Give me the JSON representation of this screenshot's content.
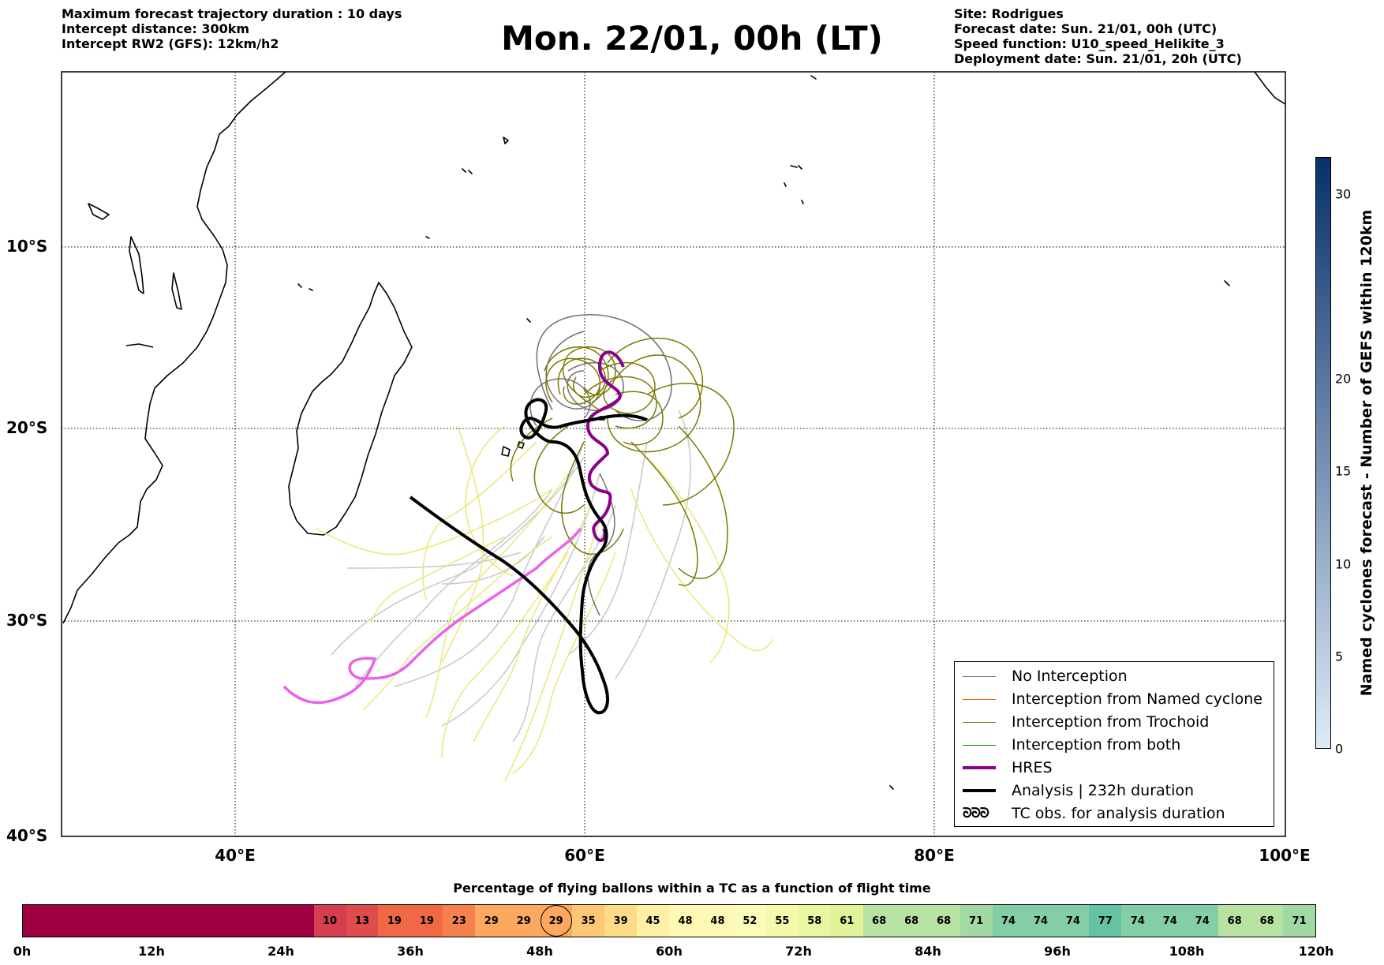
{
  "header_left": {
    "line1": "Maximum forecast trajectory duration : 10 days",
    "line2": "Intercept distance: 300km",
    "line3": "Intercept RW2 (GFS):  12km/h2"
  },
  "header_right": {
    "line1": "Site: Rodrigues",
    "line2": "Forecast date: Sun. 21/01, 00h (UTC)",
    "line3": "Speed function: U10_speed_Helikite_3",
    "line4": "Deployment date: Sun. 21/01, 20h (UTC)"
  },
  "title": "Mon. 22/01, 00h (LT)",
  "map": {
    "lat_labels": [
      "10°S",
      "20°S",
      "30°S",
      "40°S"
    ],
    "lon_labels": [
      "40°E",
      "60°E",
      "80°E",
      "100°E"
    ],
    "lon_range": [
      30,
      100
    ],
    "lat_range": [
      -40,
      1
    ]
  },
  "legend": {
    "items": [
      {
        "label": "No Interception",
        "color": "#707070"
      },
      {
        "label": "Interception from Named cyclone",
        "color": "#ff5a00"
      },
      {
        "label": "Interception from Trochoid",
        "color": "#7a7a00"
      },
      {
        "label": "Interception from both",
        "color": "#008000"
      },
      {
        "label": "HRES",
        "color": "#8b008b"
      },
      {
        "label": "Analysis | 232h duration",
        "color": "#000000"
      },
      {
        "label": "TC obs. for analysis duration",
        "glyph": "ᘐᘐᘐ"
      }
    ]
  },
  "colorbar": {
    "label": "Named cyclones forecast - Number of GEFS within 120km",
    "ticks": [
      "0",
      "5",
      "10",
      "15",
      "20",
      "30"
    ],
    "tick_values": [
      0,
      5,
      10,
      15,
      20,
      30
    ],
    "max": 32
  },
  "percentage_bar": {
    "title": "Percentage of flying ballons within a TC as a function of flight time",
    "values": [
      "10",
      "13",
      "19",
      "19",
      "23",
      "29",
      "29",
      "29",
      "35",
      "39",
      "45",
      "48",
      "48",
      "52",
      "55",
      "58",
      "61",
      "68",
      "68",
      "68",
      "71",
      "74",
      "74",
      "74",
      "77",
      "74",
      "74",
      "74",
      "68",
      "68",
      "71"
    ],
    "highlight_index": 7,
    "time_labels": [
      "0h",
      "12h",
      "24h",
      "36h",
      "48h",
      "60h",
      "72h",
      "84h",
      "96h",
      "108h",
      "120h"
    ]
  }
}
